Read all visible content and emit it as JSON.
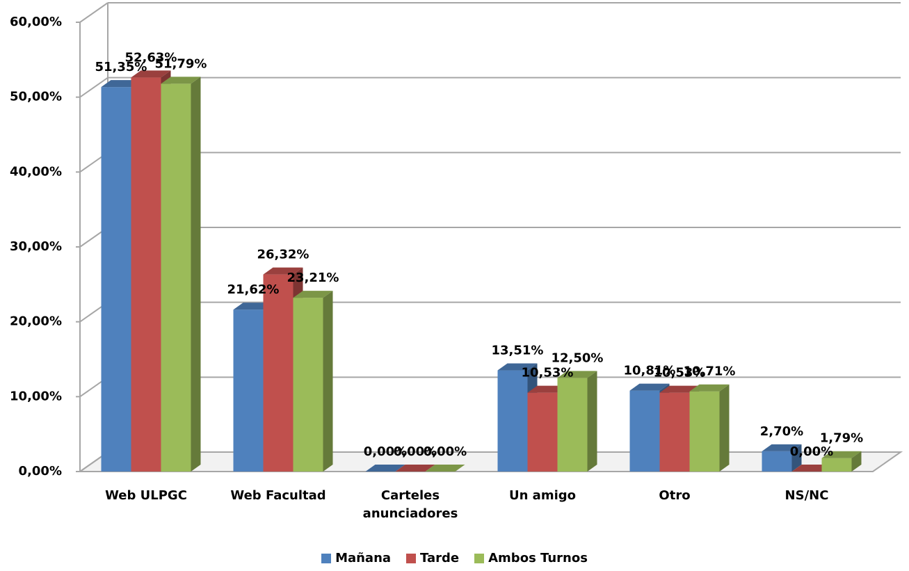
{
  "chart_data": {
    "type": "bar3d",
    "categories": [
      "Web ULPGC",
      "Web Facultad",
      "Carteles anunciadores",
      "Un amigo",
      "Otro",
      "NS/NC"
    ],
    "series": [
      {
        "name": "Mañana",
        "color": "#4f81bd",
        "values": [
          51.35,
          21.62,
          0,
          13.51,
          10.81,
          2.7
        ],
        "value_labels": [
          "51,35%",
          "21,62%",
          "0,00%",
          "13,51%",
          "10,81%",
          "2,70%"
        ]
      },
      {
        "name": "Tarde",
        "color": "#c0504d",
        "values": [
          52.63,
          26.32,
          0,
          10.53,
          10.53,
          0
        ],
        "value_labels": [
          "52,63%",
          "26,32%",
          "0,00%",
          "10,53%",
          "10,53%",
          "0,00%"
        ]
      },
      {
        "name": "Ambos Turnos",
        "color": "#9bbb59",
        "values": [
          51.79,
          23.21,
          0,
          12.5,
          10.71,
          1.79
        ],
        "value_labels": [
          "51,79%",
          "23,21%",
          "0,00%",
          "12,50%",
          "10,71%",
          "1,79%"
        ]
      }
    ],
    "ylim": [
      0,
      60
    ],
    "yticks": [
      {
        "value": 0,
        "label": "0,00%"
      },
      {
        "value": 10,
        "label": "10,00%"
      },
      {
        "value": 20,
        "label": "20,00%"
      },
      {
        "value": 30,
        "label": "30,00%"
      },
      {
        "value": 40,
        "label": "40,00%"
      },
      {
        "value": 50,
        "label": "50,00%"
      },
      {
        "value": 60,
        "label": "60,00%"
      }
    ],
    "grid": true,
    "legend": "bottom"
  }
}
